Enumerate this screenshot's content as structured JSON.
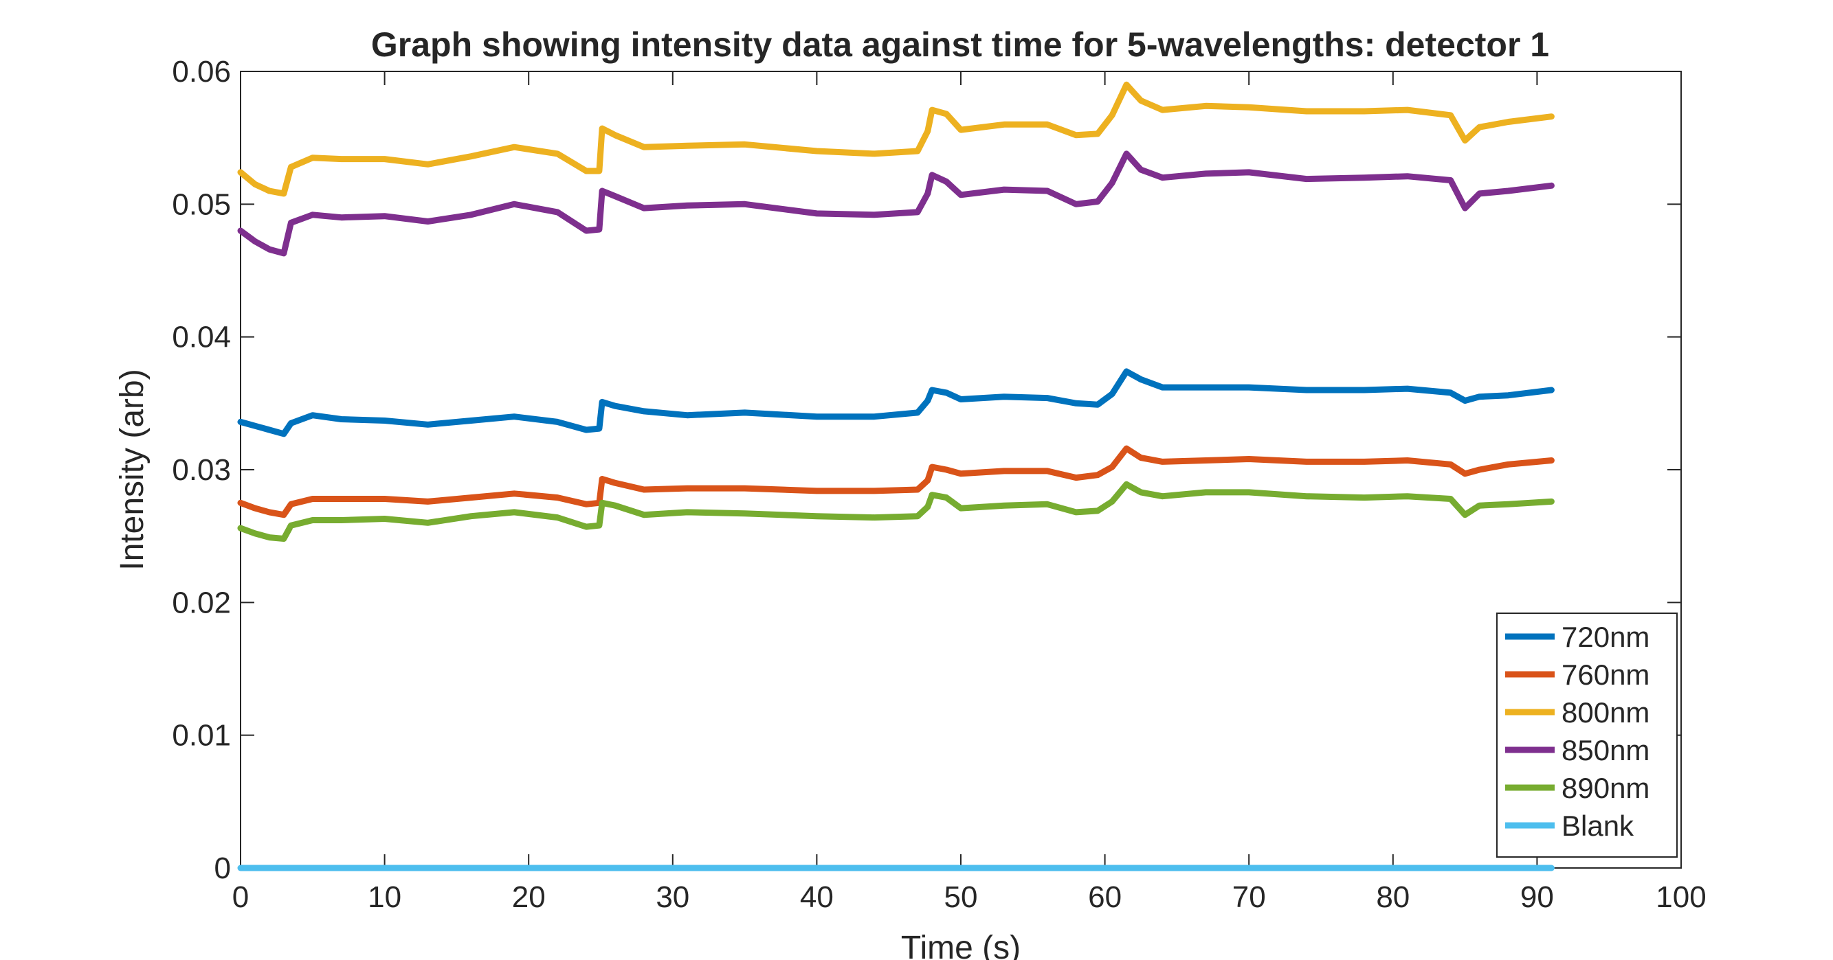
{
  "chart_data": {
    "type": "line",
    "title": "Graph showing intensity data against time for 5-wavelengths: detector 1",
    "xlabel": "Time (s)",
    "ylabel": "Intensity (arb)",
    "xlim": [
      0,
      100
    ],
    "ylim": [
      0,
      0.06
    ],
    "xticks": [
      "0",
      "10",
      "20",
      "30",
      "40",
      "50",
      "60",
      "70",
      "80",
      "90",
      "100"
    ],
    "yticks": [
      "0",
      "0.01",
      "0.02",
      "0.03",
      "0.04",
      "0.05",
      "0.06"
    ],
    "grid": false,
    "legend_position": "bottom-right",
    "x": [
      0,
      1,
      2,
      3,
      3.5,
      5,
      7,
      10,
      13,
      16,
      19,
      22,
      24,
      24.9,
      25.1,
      26,
      28,
      31,
      35,
      40,
      44,
      47,
      47.7,
      48,
      49,
      50,
      53,
      56,
      58,
      59.5,
      60.5,
      61.5,
      62.5,
      64,
      67,
      70,
      74,
      78,
      81,
      84,
      85,
      86,
      88,
      91
    ],
    "series": [
      {
        "name": "720nm",
        "color": "#0072BD",
        "values": [
          0.0336,
          0.0333,
          0.033,
          0.0327,
          0.0335,
          0.0341,
          0.0338,
          0.0337,
          0.0334,
          0.0337,
          0.034,
          0.0336,
          0.033,
          0.0331,
          0.0351,
          0.0348,
          0.0344,
          0.0341,
          0.0343,
          0.034,
          0.034,
          0.0343,
          0.0352,
          0.036,
          0.0358,
          0.0353,
          0.0355,
          0.0354,
          0.035,
          0.0349,
          0.0357,
          0.0374,
          0.0368,
          0.0362,
          0.0362,
          0.0362,
          0.036,
          0.036,
          0.0361,
          0.0358,
          0.0352,
          0.0355,
          0.0356,
          0.036
        ]
      },
      {
        "name": "760nm",
        "color": "#D95319",
        "values": [
          0.0275,
          0.0271,
          0.0268,
          0.0266,
          0.0274,
          0.0278,
          0.0278,
          0.0278,
          0.0276,
          0.0279,
          0.0282,
          0.0279,
          0.0274,
          0.0275,
          0.0293,
          0.029,
          0.0285,
          0.0286,
          0.0286,
          0.0284,
          0.0284,
          0.0285,
          0.0292,
          0.0302,
          0.03,
          0.0297,
          0.0299,
          0.0299,
          0.0294,
          0.0296,
          0.0302,
          0.0316,
          0.0309,
          0.0306,
          0.0307,
          0.0308,
          0.0306,
          0.0306,
          0.0307,
          0.0304,
          0.0297,
          0.03,
          0.0304,
          0.0307
        ]
      },
      {
        "name": "800nm",
        "color": "#EDB120",
        "values": [
          0.0524,
          0.0515,
          0.051,
          0.0508,
          0.0528,
          0.0535,
          0.0534,
          0.0534,
          0.053,
          0.0536,
          0.0543,
          0.0538,
          0.0525,
          0.0525,
          0.0557,
          0.0552,
          0.0543,
          0.0544,
          0.0545,
          0.054,
          0.0538,
          0.054,
          0.0555,
          0.0571,
          0.0568,
          0.0556,
          0.056,
          0.056,
          0.0552,
          0.0553,
          0.0567,
          0.059,
          0.0578,
          0.0571,
          0.0574,
          0.0573,
          0.057,
          0.057,
          0.0571,
          0.0567,
          0.0548,
          0.0558,
          0.0562,
          0.0566
        ]
      },
      {
        "name": "850nm",
        "color": "#7E2F8E",
        "values": [
          0.048,
          0.0472,
          0.0466,
          0.0463,
          0.0486,
          0.0492,
          0.049,
          0.0491,
          0.0487,
          0.0492,
          0.05,
          0.0494,
          0.048,
          0.0481,
          0.051,
          0.0506,
          0.0497,
          0.0499,
          0.05,
          0.0493,
          0.0492,
          0.0494,
          0.0508,
          0.0522,
          0.0517,
          0.0507,
          0.0511,
          0.051,
          0.05,
          0.0502,
          0.0516,
          0.0538,
          0.0526,
          0.052,
          0.0523,
          0.0524,
          0.0519,
          0.052,
          0.0521,
          0.0518,
          0.0497,
          0.0508,
          0.051,
          0.0514
        ]
      },
      {
        "name": "890nm",
        "color": "#77AC30",
        "values": [
          0.0256,
          0.0252,
          0.0249,
          0.0248,
          0.0258,
          0.0262,
          0.0262,
          0.0263,
          0.026,
          0.0265,
          0.0268,
          0.0264,
          0.0257,
          0.0258,
          0.0275,
          0.0273,
          0.0266,
          0.0268,
          0.0267,
          0.0265,
          0.0264,
          0.0265,
          0.0272,
          0.0281,
          0.0279,
          0.0271,
          0.0273,
          0.0274,
          0.0268,
          0.0269,
          0.0276,
          0.0289,
          0.0283,
          0.028,
          0.0283,
          0.0283,
          0.028,
          0.0279,
          0.028,
          0.0278,
          0.0266,
          0.0273,
          0.0274,
          0.0276
        ]
      },
      {
        "name": "Blank",
        "color": "#4DBEEE",
        "values": [
          0,
          0,
          0,
          0,
          0,
          0,
          0,
          0,
          0,
          0,
          0,
          0,
          0,
          0,
          0,
          0,
          0,
          0,
          0,
          0,
          0,
          0,
          0,
          0,
          0,
          0,
          0,
          0,
          0,
          0,
          0,
          0,
          0,
          0,
          0,
          0,
          0,
          0,
          0,
          0,
          0,
          0,
          0,
          0
        ]
      }
    ]
  }
}
